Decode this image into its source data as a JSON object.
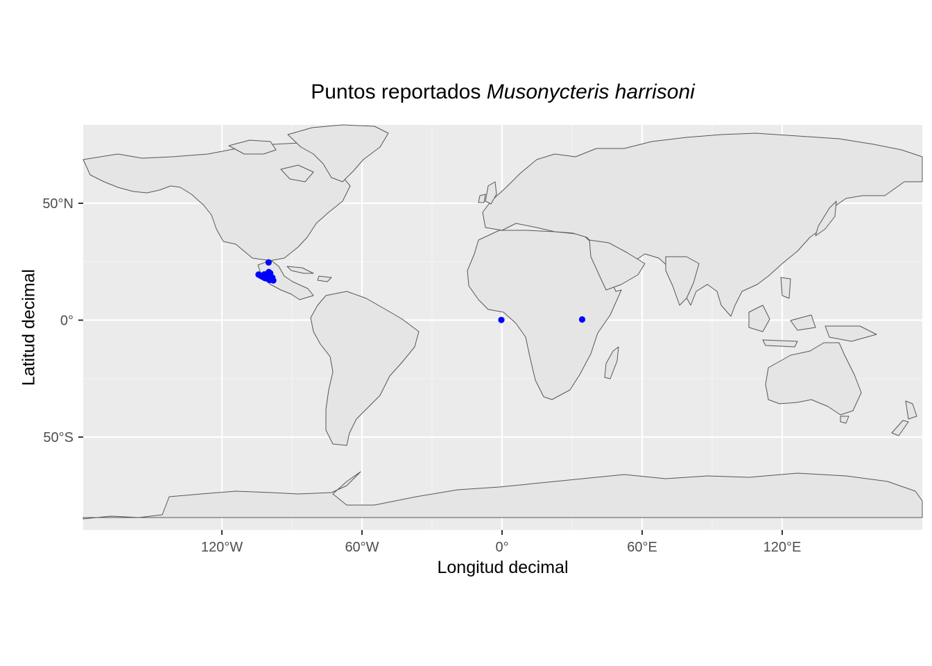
{
  "title": {
    "prefix": "Puntos reportados ",
    "species": "Musonycteris harrisoni"
  },
  "chart_data": {
    "type": "scatter",
    "xlabel": "Longitud decimal",
    "ylabel": "Latitud decimal",
    "xlim": [
      -180,
      180
    ],
    "ylim": [
      -90,
      84
    ],
    "x_ticks": [
      {
        "value": -120,
        "label": "120°W"
      },
      {
        "value": -60,
        "label": "60°W"
      },
      {
        "value": 0,
        "label": "0°"
      },
      {
        "value": 60,
        "label": "60°E"
      },
      {
        "value": 120,
        "label": "120°E"
      }
    ],
    "y_ticks": [
      {
        "value": 50,
        "label": "50°N"
      },
      {
        "value": 0,
        "label": "0°"
      },
      {
        "value": -50,
        "label": "50°S"
      }
    ],
    "grid": true,
    "basemap": "world country outlines",
    "point_color": "#0000ff",
    "land_color": "#e5e5e5",
    "panel_color": "#ebebeb",
    "border_color": "#555555",
    "points": [
      {
        "lon": -104.3,
        "lat": 19.5
      },
      {
        "lon": -103.7,
        "lat": 19.2
      },
      {
        "lon": -103.2,
        "lat": 18.9
      },
      {
        "lon": -102.6,
        "lat": 18.6
      },
      {
        "lon": -102.0,
        "lat": 18.3
      },
      {
        "lon": -101.5,
        "lat": 18.0
      },
      {
        "lon": -101.0,
        "lat": 18.4
      },
      {
        "lon": -100.6,
        "lat": 17.8
      },
      {
        "lon": -100.1,
        "lat": 18.6
      },
      {
        "lon": -99.6,
        "lat": 17.2
      },
      {
        "lon": -99.2,
        "lat": 18.9
      },
      {
        "lon": -98.8,
        "lat": 17.6
      },
      {
        "lon": -98.4,
        "lat": 18.2
      },
      {
        "lon": -98.0,
        "lat": 17.0
      },
      {
        "lon": -99.9,
        "lat": 20.6
      },
      {
        "lon": -99.3,
        "lat": 20.1
      },
      {
        "lon": -100.0,
        "lat": 24.7
      },
      {
        "lon": -101.8,
        "lat": 19.6
      },
      {
        "lon": -0.3,
        "lat": 0.1
      },
      {
        "lon": 34.3,
        "lat": 0.3
      }
    ]
  }
}
